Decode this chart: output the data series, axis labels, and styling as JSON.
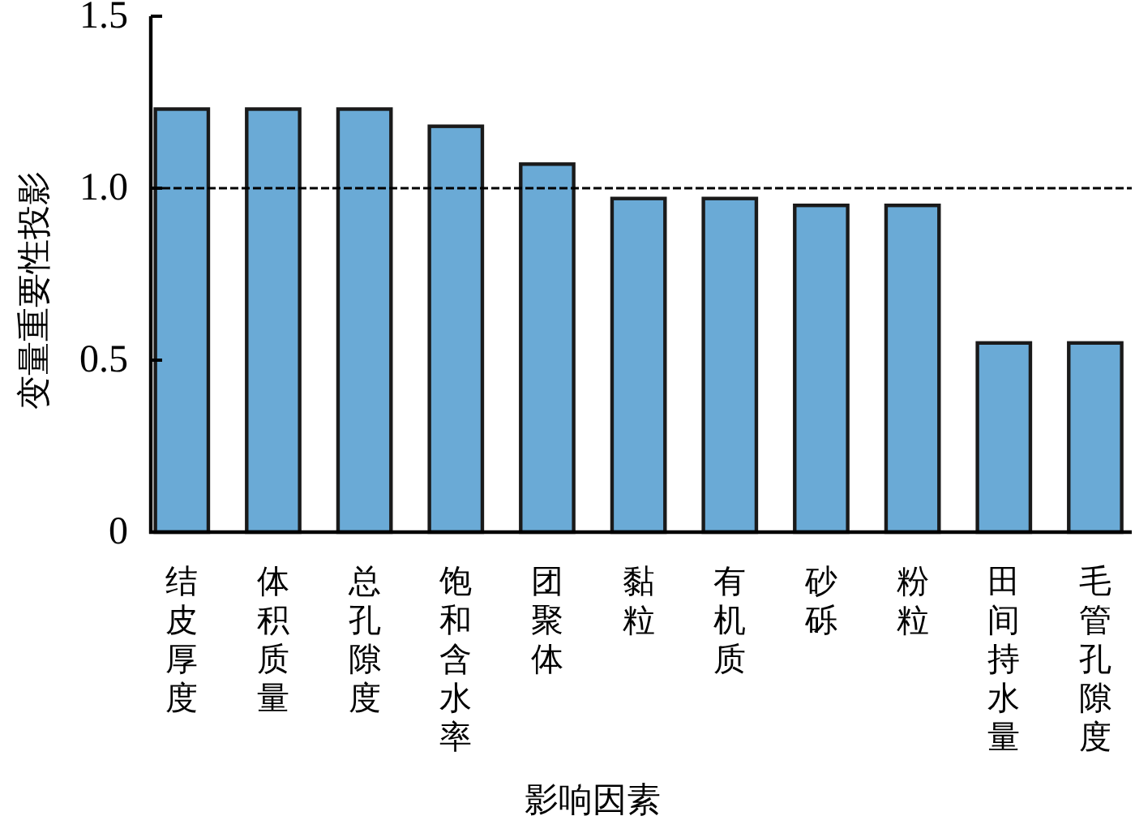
{
  "chart_data": {
    "type": "bar",
    "xlabel": "影响因素",
    "ylabel": "变量重要性投影",
    "categories": [
      "结皮厚度",
      "体积质量",
      "总孔隙度",
      "饱和含水率",
      "团聚体",
      "黏粒",
      "有机质",
      "砂砾",
      "粉粒",
      "田间持水量",
      "毛管孔隙度"
    ],
    "values": [
      1.23,
      1.23,
      1.23,
      1.18,
      1.07,
      0.97,
      0.97,
      0.95,
      0.95,
      0.55,
      0.55
    ],
    "color": "#6aaad6",
    "ylim": [
      0,
      1.5
    ],
    "yticks": [
      0,
      0.5,
      {
        "value": 1,
        "label": "1.0"
      },
      1.5
    ],
    "ref_lines": [
      {
        "axis": "y",
        "value": 1,
        "line_style": "dashed",
        "color": "#000000"
      }
    ],
    "grid": false
  }
}
